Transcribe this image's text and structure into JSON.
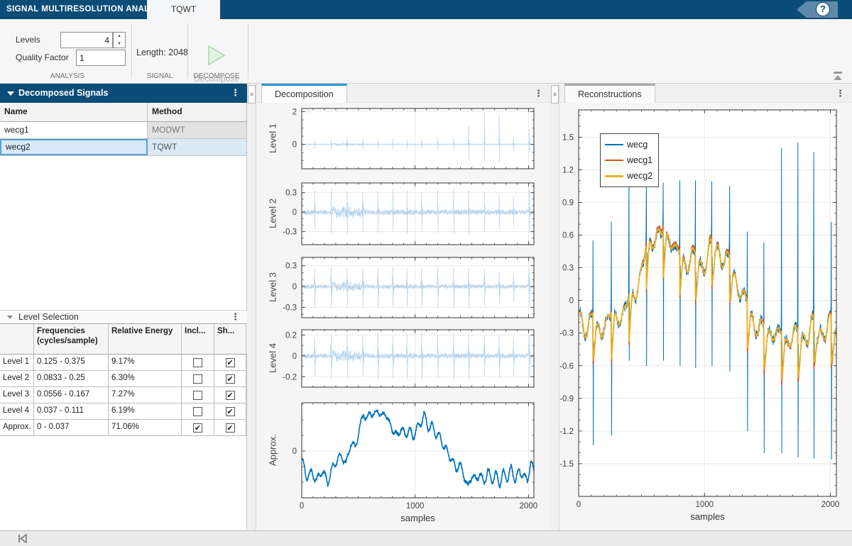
{
  "titlebar": {
    "app_title": "SIGNAL MULTIRESOLUTION ANALYZER",
    "tab": "TQWT",
    "help": "?"
  },
  "ribbon": {
    "levels_label": "Levels",
    "levels_value": "4",
    "quality_label": "Quality Factor",
    "quality_value": "1",
    "analysis_section": "ANALYSIS",
    "length_text": "Length: 2048",
    "signal_section": "SIGNAL",
    "decompose_button": "Decompose",
    "decompose_section": "DECOMPOSE"
  },
  "signals_panel": {
    "title": "Decomposed Signals",
    "columns": [
      "Name",
      "Method"
    ],
    "rows": [
      {
        "name": "wecg1",
        "method": "MODWT",
        "selected": false
      },
      {
        "name": "wecg2",
        "method": "TQWT",
        "selected": true
      }
    ]
  },
  "levels_panel": {
    "title": "Level Selection",
    "columns": [
      "",
      "Frequencies\n(cycles/sample)",
      "Relative Energy",
      "Incl...",
      "Sh..."
    ],
    "rows": [
      {
        "label": "Level 1",
        "freq": "0.125 - 0.375",
        "energy": "9.17%",
        "include": false,
        "show": true
      },
      {
        "label": "Level 2",
        "freq": "0.0833 - 0.25",
        "energy": "6.30%",
        "include": false,
        "show": true
      },
      {
        "label": "Level 3",
        "freq": "0.0556 - 0.167",
        "energy": "7.27%",
        "include": false,
        "show": true
      },
      {
        "label": "Level 4",
        "freq": "0.037 - 0.111",
        "energy": "6.19%",
        "include": false,
        "show": true
      },
      {
        "label": "Approx.",
        "freq": "0 - 0.037",
        "energy": "71.06%",
        "include": true,
        "show": true
      }
    ]
  },
  "decomposition_panel": {
    "tab": "Decomposition"
  },
  "reconstructions_panel": {
    "tab": "Reconstructions"
  },
  "colors": {
    "header_blue": "#0c4c78",
    "accent_tab": "#2e95d8",
    "signal_light_blue": "#b9d5ec",
    "matlab_blue": "#0072bd",
    "matlab_red": "#d95319",
    "matlab_orange": "#edb120"
  },
  "chart_data": [
    {
      "id": "decomposition",
      "type": "line",
      "title": "Decomposition",
      "xlabel": "samples",
      "xlim": [
        0,
        2048
      ],
      "xticks": [
        [
          0,
          "0"
        ],
        [
          1000,
          "1000"
        ],
        [
          2000,
          "2000"
        ]
      ],
      "xminor": 100,
      "beat_positions": [
        113,
        260,
        400,
        537,
        672,
        803,
        927,
        1057,
        1199,
        1340,
        1471,
        1612,
        1742,
        1867,
        2008
      ],
      "plots": [
        {
          "label": "Level 1",
          "ylim": [
            -1.5,
            2.2
          ],
          "yticks": [
            [
              2,
              "2"
            ],
            [
              0,
              "0"
            ]
          ],
          "yminor": 0.5,
          "color": "#b9d5ec",
          "noise": 0.028,
          "burst": [
            270,
            560,
            0.05
          ],
          "beats_u": [
            0.28,
            0.3,
            0.42,
            0.35,
            0.3,
            0.32,
            0.33,
            0.3,
            0.38,
            0.4,
            1.15,
            1.9,
            1.85,
            0.45,
            0.9
          ],
          "beats_d": [
            -0.3,
            -0.33,
            -0.38,
            -0.3,
            -0.28,
            -0.3,
            -0.3,
            -0.28,
            -0.33,
            -0.35,
            -1.0,
            -1.05,
            -1.1,
            -0.4,
            -0.5
          ]
        },
        {
          "label": "Level 2",
          "ylim": [
            -0.5,
            0.45
          ],
          "yticks": [
            [
              0.3,
              "0.3"
            ],
            [
              0,
              "0"
            ],
            [
              -0.3,
              "-0.3"
            ]
          ],
          "yminor": 0.1,
          "color": "#b9d5ec",
          "noise": 0.04,
          "burst": [
            270,
            560,
            0.05
          ],
          "beats_u": [
            0.34,
            0.36,
            0.33,
            0.3,
            0.32,
            0.35,
            0.34,
            0.32,
            0.35,
            0.36,
            0.34,
            0.32,
            0.28,
            0.24,
            0.34
          ],
          "beats_d": [
            -0.28,
            -0.33,
            -0.35,
            -0.3,
            -0.32,
            -0.3,
            -0.33,
            -0.3,
            -0.32,
            -0.33,
            -0.34,
            -0.3,
            -0.25,
            -0.22,
            -0.32
          ]
        },
        {
          "label": "Level 3",
          "ylim": [
            -0.45,
            0.42
          ],
          "yticks": [
            [
              0.3,
              "0.3"
            ],
            [
              0,
              "0"
            ],
            [
              -0.3,
              "-0.3"
            ]
          ],
          "yminor": 0.1,
          "color": "#b9d5ec",
          "noise": 0.03,
          "burst": [
            270,
            560,
            0.04
          ],
          "wide": true,
          "beats_u": [
            0.26,
            0.28,
            0.27,
            0.25,
            0.27,
            0.28,
            0.27,
            0.26,
            0.28,
            0.28,
            0.27,
            0.25,
            0.22,
            0.2,
            0.27
          ],
          "beats_d": [
            -0.28,
            -0.3,
            -0.3,
            -0.28,
            -0.29,
            -0.3,
            -0.3,
            -0.28,
            -0.3,
            -0.3,
            -0.3,
            -0.28,
            -0.25,
            -0.22,
            -0.3
          ]
        },
        {
          "label": "Level 4",
          "ylim": [
            -0.3,
            0.25
          ],
          "yticks": [
            [
              0.2,
              "0.2"
            ],
            [
              0,
              "0"
            ],
            [
              -0.2,
              "-0.2"
            ]
          ],
          "yminor": 0.1,
          "color": "#b9d5ec",
          "noise": 0.024,
          "burst": [
            270,
            560,
            0.03
          ],
          "wide": true,
          "beats_u": [
            0.18,
            0.2,
            0.21,
            0.19,
            0.22,
            0.2,
            0.21,
            0.22,
            0.2,
            0.22,
            0.21,
            0.19,
            0.2,
            0.18,
            0.2
          ],
          "beats_d": [
            -0.2,
            -0.22,
            -0.21,
            -0.2,
            -0.22,
            -0.21,
            -0.22,
            -0.23,
            -0.21,
            -0.23,
            -0.22,
            -0.2,
            -0.21,
            -0.19,
            -0.21
          ]
        },
        {
          "label": "Approx.",
          "ylim": [
            -0.6,
            0.62
          ],
          "yticks": [
            [
              0,
              "0"
            ]
          ],
          "yminor": 0.2,
          "color": "#0072bd",
          "width": 1.6,
          "noise": 0.018,
          "wiggle": [
            0.05,
            63
          ],
          "xlabels": true,
          "base": [
            [
              0,
              -0.1
            ],
            [
              40,
              -0.32
            ],
            [
              90,
              -0.28
            ],
            [
              130,
              -0.38
            ],
            [
              180,
              -0.25
            ],
            [
              230,
              -0.4
            ],
            [
              270,
              -0.22
            ],
            [
              310,
              -0.12
            ],
            [
              350,
              -0.05
            ],
            [
              390,
              -0.18
            ],
            [
              430,
              0.1
            ],
            [
              470,
              0.05
            ],
            [
              510,
              0.28
            ],
            [
              545,
              0.5
            ],
            [
              575,
              0.38
            ],
            [
              605,
              0.52
            ],
            [
              640,
              0.44
            ],
            [
              670,
              0.55
            ],
            [
              705,
              0.42
            ],
            [
              735,
              0.52
            ],
            [
              770,
              0.35
            ],
            [
              805,
              0.28
            ],
            [
              840,
              0.18
            ],
            [
              875,
              0.3
            ],
            [
              910,
              0.2
            ],
            [
              945,
              0.28
            ],
            [
              980,
              0.18
            ],
            [
              1010,
              0.28
            ],
            [
              1045,
              0.35
            ],
            [
              1080,
              0.47
            ],
            [
              1115,
              0.3
            ],
            [
              1150,
              0.32
            ],
            [
              1185,
              0.22
            ],
            [
              1220,
              0.18
            ],
            [
              1255,
              0.05
            ],
            [
              1290,
              -0.02
            ],
            [
              1325,
              -0.12
            ],
            [
              1360,
              -0.22
            ],
            [
              1395,
              -0.18
            ],
            [
              1430,
              -0.3
            ],
            [
              1465,
              -0.48
            ],
            [
              1500,
              -0.3
            ],
            [
              1535,
              -0.38
            ],
            [
              1570,
              -0.28
            ],
            [
              1605,
              -0.42
            ],
            [
              1640,
              -0.25
            ],
            [
              1675,
              -0.38
            ],
            [
              1710,
              -0.3
            ],
            [
              1745,
              -0.42
            ],
            [
              1780,
              -0.28
            ],
            [
              1815,
              -0.35
            ],
            [
              1850,
              -0.22
            ],
            [
              1885,
              -0.38
            ],
            [
              1920,
              -0.25
            ],
            [
              1955,
              -0.32
            ],
            [
              1990,
              -0.38
            ],
            [
              2020,
              -0.15
            ],
            [
              2048,
              -0.25
            ]
          ]
        }
      ]
    },
    {
      "id": "reconstructions",
      "type": "line",
      "title": "Reconstructions",
      "xlabel": "samples",
      "xlim": [
        0,
        2048
      ],
      "xticks": [
        [
          0,
          "0"
        ],
        [
          1000,
          "1000"
        ],
        [
          2000,
          "2000"
        ]
      ],
      "xminor": 100,
      "ylim": [
        -1.8,
        1.75
      ],
      "yminor": 0.1,
      "yticks": [
        [
          1.5,
          "1.5"
        ],
        [
          1.2,
          "1.2"
        ],
        [
          0.9,
          "0.9"
        ],
        [
          0.6,
          "0.6"
        ],
        [
          0.3,
          "0.3"
        ],
        [
          0,
          "0"
        ],
        [
          -0.3,
          "-0.3"
        ],
        [
          -0.6,
          "-0.6"
        ],
        [
          -0.9,
          "-0.9"
        ],
        [
          -1.2,
          "-1.2"
        ],
        [
          -1.5,
          "-1.5"
        ]
      ],
      "legend": [
        {
          "label": "wecg",
          "color": "#0072bd",
          "lw": 2.2
        },
        {
          "label": "wecg1",
          "color": "#d95319",
          "lw": 2.2
        },
        {
          "label": "wecg2",
          "color": "#edb120",
          "lw": 3.0
        }
      ],
      "beat_positions": [
        113,
        260,
        400,
        537,
        672,
        803,
        927,
        1057,
        1199,
        1340,
        1471,
        1612,
        1742,
        1867,
        2008
      ],
      "base": [
        [
          0,
          -0.12
        ],
        [
          60,
          -0.3
        ],
        [
          113,
          -0.22
        ],
        [
          170,
          -0.3
        ],
        [
          230,
          -0.22
        ],
        [
          290,
          -0.18
        ],
        [
          350,
          -0.15
        ],
        [
          400,
          -0.05
        ],
        [
          450,
          0.05
        ],
        [
          500,
          0.25
        ],
        [
          550,
          0.45
        ],
        [
          600,
          0.55
        ],
        [
          640,
          0.6
        ],
        [
          680,
          0.52
        ],
        [
          720,
          0.58
        ],
        [
          760,
          0.45
        ],
        [
          800,
          0.38
        ],
        [
          850,
          0.3
        ],
        [
          900,
          0.36
        ],
        [
          950,
          0.3
        ],
        [
          1000,
          0.3
        ],
        [
          1050,
          0.42
        ],
        [
          1100,
          0.46
        ],
        [
          1150,
          0.34
        ],
        [
          1200,
          0.3
        ],
        [
          1250,
          0.15
        ],
        [
          1300,
          0.02
        ],
        [
          1350,
          -0.12
        ],
        [
          1400,
          -0.25
        ],
        [
          1450,
          -0.3
        ],
        [
          1500,
          -0.35
        ],
        [
          1550,
          -0.3
        ],
        [
          1600,
          -0.38
        ],
        [
          1650,
          -0.42
        ],
        [
          1700,
          -0.33
        ],
        [
          1750,
          -0.4
        ],
        [
          1800,
          -0.36
        ],
        [
          1850,
          -0.3
        ],
        [
          1900,
          -0.34
        ],
        [
          1950,
          -0.3
        ],
        [
          2000,
          -0.28
        ],
        [
          2048,
          -0.3
        ]
      ],
      "series": [
        {
          "name": "wecg",
          "color": "#0072bd",
          "width": 1.0,
          "noise": 0.045,
          "rbeats": [
            0.15,
            -0.28,
            40,
            26
          ],
          "wiggle": [
            0.06,
            68
          ],
          "beats_u": [
            0.55,
            0.72,
            1.23,
            1.14,
            1.08,
            1.1,
            1.1,
            1.09,
            1.05,
            0.63,
            0.53,
            1.4,
            1.45,
            1.36,
            0.72
          ],
          "beats_d": [
            -1.33,
            -1.24,
            -0.55,
            -0.6,
            -0.55,
            -0.6,
            -0.62,
            -0.6,
            -0.65,
            -1.2,
            -1.4,
            -1.4,
            -1.44,
            -1.45,
            -1.46
          ]
        },
        {
          "name": "wecg1",
          "color": "#d95319",
          "width": 1.2,
          "noise": 0.01,
          "rbeats": [
            0.18,
            -0.32,
            40,
            26
          ],
          "wiggle": [
            0.06,
            68
          ],
          "scale": 1.03
        },
        {
          "name": "wecg2",
          "color": "#edb120",
          "width": 1.8,
          "noise": 0.01,
          "rbeats": [
            0.15,
            -0.28,
            40,
            26
          ],
          "wiggle": [
            0.06,
            68
          ]
        }
      ]
    }
  ]
}
